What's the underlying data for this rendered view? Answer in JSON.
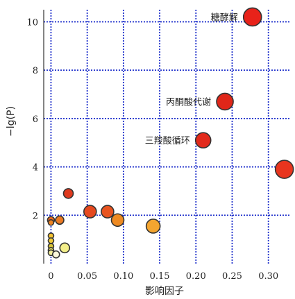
{
  "chart_data": {
    "type": "scatter",
    "title": "",
    "xlabel": "影响因子",
    "ylabel": "−lg(P)",
    "xlim": [
      -0.01,
      0.33
    ],
    "ylim": [
      0,
      10.5
    ],
    "xticks": [
      {
        "value": 0,
        "label": "0"
      },
      {
        "value": 0.05,
        "label": "0.05"
      },
      {
        "value": 0.1,
        "label": "0.10"
      },
      {
        "value": 0.15,
        "label": "0.15"
      },
      {
        "value": 0.2,
        "label": "0.20"
      },
      {
        "value": 0.25,
        "label": "0.25"
      },
      {
        "value": 0.3,
        "label": "0.30"
      }
    ],
    "yticks": [
      {
        "value": 2,
        "label": "2"
      },
      {
        "value": 4,
        "label": "4"
      },
      {
        "value": 6,
        "label": "6"
      },
      {
        "value": 8,
        "label": "8"
      },
      {
        "value": 10,
        "label": "10"
      }
    ],
    "grid": true,
    "grid_color": "#2233cc",
    "points": [
      {
        "x": 0.278,
        "y": 10.2,
        "size": 13,
        "color": "#e8221a",
        "label": "糖酵解"
      },
      {
        "x": 0.24,
        "y": 6.7,
        "size": 12,
        "color": "#e02619",
        "label": "丙酮酸代谢"
      },
      {
        "x": 0.21,
        "y": 5.1,
        "size": 11,
        "color": "#e22a1c",
        "label": "三羧酸循环"
      },
      {
        "x": 0.322,
        "y": 3.9,
        "size": 13,
        "color": "#e8351e",
        "label": ""
      },
      {
        "x": 0.024,
        "y": 2.9,
        "size": 7,
        "color": "#df3a1e",
        "label": ""
      },
      {
        "x": 0.054,
        "y": 2.15,
        "size": 9,
        "color": "#e6491f",
        "label": ""
      },
      {
        "x": 0.078,
        "y": 2.15,
        "size": 9,
        "color": "#e85420",
        "label": ""
      },
      {
        "x": 0.092,
        "y": 1.8,
        "size": 9,
        "color": "#ee8a22",
        "label": ""
      },
      {
        "x": 0.141,
        "y": 1.55,
        "size": 10,
        "color": "#f4a530",
        "label": ""
      },
      {
        "x": 0.0,
        "y": 1.8,
        "size": 5,
        "color": "#ec6a22",
        "label": ""
      },
      {
        "x": 0.0,
        "y": 1.7,
        "size": 4,
        "color": "#ee8424",
        "label": ""
      },
      {
        "x": 0.012,
        "y": 1.8,
        "size": 6,
        "color": "#ec7a24",
        "label": ""
      },
      {
        "x": 0.0,
        "y": 1.15,
        "size": 4,
        "color": "#f3c232",
        "label": ""
      },
      {
        "x": 0.0,
        "y": 0.95,
        "size": 4,
        "color": "#f0cc3a",
        "label": ""
      },
      {
        "x": 0.0,
        "y": 0.72,
        "size": 4,
        "color": "#d6c23a",
        "label": ""
      },
      {
        "x": 0.0,
        "y": 0.55,
        "size": 4,
        "color": "#e6dd66",
        "label": ""
      },
      {
        "x": 0.0,
        "y": 0.45,
        "size": 4,
        "color": "#f2ee9a",
        "label": ""
      },
      {
        "x": 0.019,
        "y": 0.65,
        "size": 7,
        "color": "#f3ee8a",
        "label": ""
      },
      {
        "x": 0.007,
        "y": 0.38,
        "size": 5,
        "color": "#fbf8dc",
        "label": ""
      }
    ]
  }
}
